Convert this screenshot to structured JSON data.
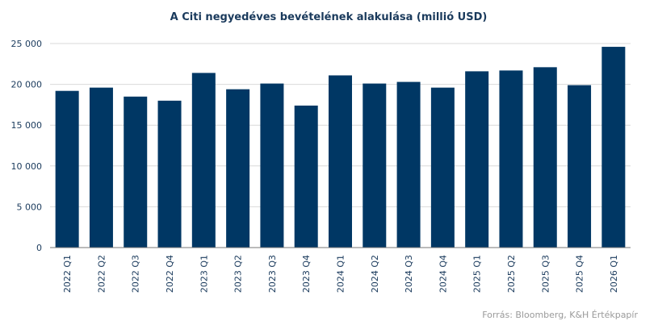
{
  "chart_data": {
    "type": "bar",
    "title": "A Citi negyedéves bevételének  alakulása (millió USD)",
    "categories": [
      "2022 Q1",
      "2022 Q2",
      "2022 Q3",
      "2022 Q4",
      "2023 Q1",
      "2023 Q2",
      "2023 Q3",
      "2023 Q4",
      "2024 Q1",
      "2024 Q2",
      "2024 Q3",
      "2024 Q4",
      "2025 Q1",
      "2025 Q2",
      "2025 Q3",
      "2025 Q4",
      "2026 Q1"
    ],
    "values": [
      19200,
      19600,
      18500,
      18000,
      21400,
      19400,
      20100,
      17400,
      21100,
      20100,
      20300,
      19600,
      21600,
      21700,
      22100,
      19900,
      24600
    ],
    "ylim": [
      0,
      25000
    ],
    "yticks": [
      0,
      5000,
      10000,
      15000,
      20000,
      25000
    ],
    "ytick_labels": [
      "0",
      "5 000",
      "10 000",
      "15 000",
      "20 000",
      "25 000"
    ],
    "xlabel": "",
    "ylabel": "",
    "grid": true,
    "bar_color": "#003764"
  },
  "source_text": "Forrás: Bloomberg,  K&H Értékpapír"
}
